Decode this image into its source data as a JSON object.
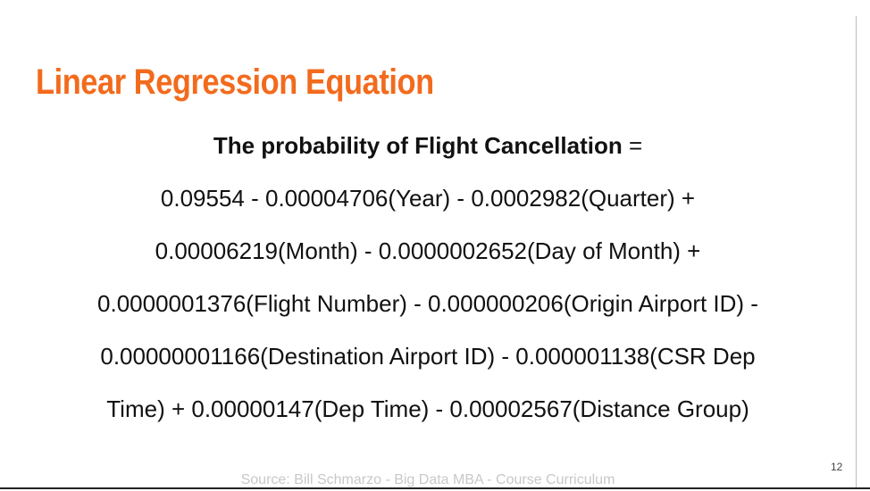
{
  "header": {
    "title": "Linear Regression Equation"
  },
  "equation": {
    "heading": "The probability of Flight Cancellation",
    "operator": "=",
    "lines": [
      "0.09554 - 0.00004706(Year) - 0.0002982(Quarter) +",
      "0.00006219(Month) - 0.0000002652(Day of Month) +",
      "0.0000001376(Flight Number) - 0.000000206(Origin Airport ID) -",
      "0.00000001166(Destination Airport ID) - 0.000001138(CSR Dep",
      "Time) + 0.00000147(Dep Time) - 0.00002567(Distance Group)"
    ]
  },
  "footer": {
    "source": "Source: Bill Schmarzo - Big Data MBA - Course Curriculum",
    "page_number": "12"
  }
}
